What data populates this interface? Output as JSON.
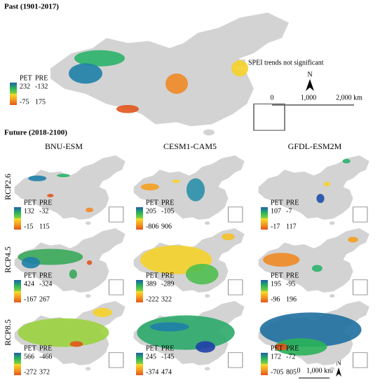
{
  "past": {
    "title": "Past (1901-2017)",
    "legend_header": [
      "PET",
      "PRE"
    ],
    "legend_values": [
      [
        232,
        -132
      ],
      [
        -75,
        175
      ]
    ],
    "note": "SPEI trends not significant",
    "scale": [
      "0",
      "1,000",
      "2,000 km"
    ],
    "north": "N"
  },
  "future": {
    "title": "Future (2018-2100)",
    "columns": [
      "BNU-ESM",
      "CESM1-CAM5",
      "GFDL-ESM2M"
    ],
    "rows": [
      "RCP2.6",
      "RCP4.5",
      "RCP8.5"
    ],
    "legend_header": [
      "PET",
      "PRE"
    ],
    "panels": [
      [
        [
          [
            132,
            -32
          ],
          [
            -15,
            115
          ]
        ],
        [
          [
            205,
            -105
          ],
          [
            -806,
            906
          ]
        ],
        [
          [
            107,
            -7
          ],
          [
            -17,
            117
          ]
        ]
      ],
      [
        [
          [
            424,
            -324
          ],
          [
            -167,
            267
          ]
        ],
        [
          [
            389,
            -289
          ],
          [
            -222,
            322
          ]
        ],
        [
          [
            195,
            -95
          ],
          [
            -96,
            196
          ]
        ]
      ],
      [
        [
          [
            566,
            -466
          ],
          [
            -272,
            372
          ]
        ],
        [
          [
            245,
            -145
          ],
          [
            -374,
            474
          ]
        ],
        [
          [
            172,
            -72
          ],
          [
            -705,
            805
          ]
        ]
      ]
    ],
    "scale": [
      "0",
      "1,000 km"
    ],
    "north": "N"
  }
}
